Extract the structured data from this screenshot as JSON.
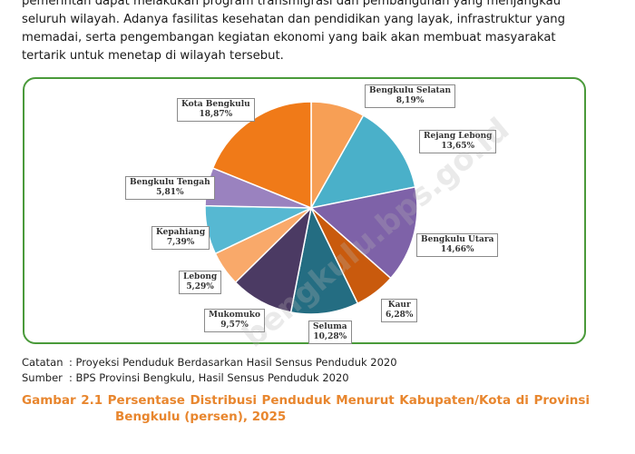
{
  "paragraph": {
    "lines": [
      "pemerintah dapat melakukan program transmigrasi dan pembangunan yang menjangkau",
      "seluruh wilayah. Adanya fasilitas kesehatan dan pendidikan yang layak, infrastruktur yang",
      "memadai, serta pengembangan kegiatan ekonomi yang baik akan membuat masyarakat",
      "tertarik untuk menetap di wilayah tersebut."
    ]
  },
  "chart_data": {
    "type": "pie",
    "categories": [
      "Bengkulu Selatan",
      "Rejang Lebong",
      "Bengkulu Utara",
      "Kaur",
      "Seluma",
      "Mukomuko",
      "Lebong",
      "Kepahiang",
      "Bengkulu Tengah",
      "Kota Bengkulu"
    ],
    "values": [
      8.19,
      13.65,
      14.66,
      6.28,
      10.28,
      9.57,
      5.29,
      7.39,
      5.81,
      18.87
    ],
    "labels": [
      "8,19%",
      "13,65%",
      "14,66%",
      "6,28%",
      "10,28%",
      "9,57%",
      "5,29%",
      "7,39%",
      "5,81%",
      "18,87%"
    ],
    "colors": [
      "#f79f55",
      "#4ab0c9",
      "#7e62a8",
      "#c95a0d",
      "#246d82",
      "#4b3a63",
      "#f9a96a",
      "#56b8d2",
      "#9a82bf",
      "#f07a18"
    ],
    "start": "top",
    "direction": "clockwise"
  },
  "notes": {
    "catatan_key": "Catatan",
    "catatan_text": ": Proyeksi Penduduk Berdasarkan Hasil Sensus Penduduk 2020",
    "sumber_key": "Sumber",
    "sumber_text": ": BPS Provinsi Bengkulu, Hasil Sensus Penduduk 2020"
  },
  "caption": {
    "words": [
      "Gambar",
      "2.1",
      "Persentase",
      "Distribusi",
      "Penduduk",
      "Menurut",
      "Kabupaten/Kota",
      "di",
      "Provinsi"
    ],
    "line2": "Bengkulu (persen), 2025"
  },
  "watermark": "bengkulu.bps.go.id"
}
